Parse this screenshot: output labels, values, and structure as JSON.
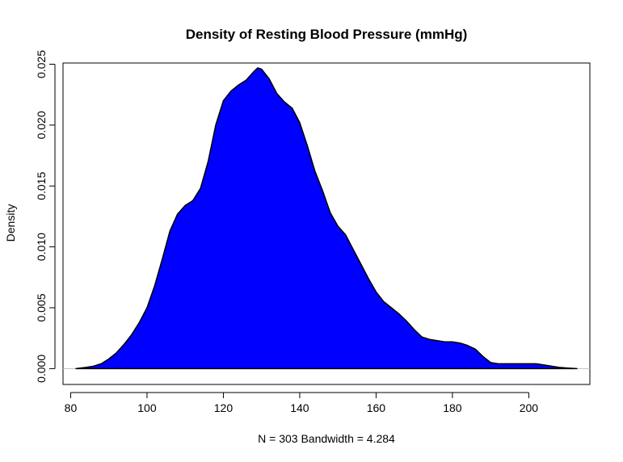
{
  "chart_data": {
    "type": "area",
    "title": "Density of Resting Blood Pressure (mmHg)",
    "xlabel": "N = 303   Bandwidth = 4.284",
    "ylabel": "Density",
    "xlim": [
      78,
      216
    ],
    "ylim": [
      -0.0013,
      0.0251
    ],
    "x_ticks": [
      80,
      100,
      120,
      140,
      160,
      180,
      200
    ],
    "x_tick_labels": [
      "80",
      "100",
      "120",
      "140",
      "160",
      "180",
      "200"
    ],
    "y_ticks": [
      0.0,
      0.005,
      0.01,
      0.015,
      0.02,
      0.025
    ],
    "y_tick_labels": [
      "0.000",
      "0.005",
      "0.010",
      "0.015",
      "0.020",
      "0.025"
    ],
    "fill_color": "#0000ff",
    "line_color": "#000000",
    "baseline_color": "#bebebe",
    "series": [
      {
        "x": [
          81.4,
          84,
          86,
          88,
          90,
          92,
          94,
          96,
          98,
          100,
          102,
          104,
          106,
          108,
          110,
          112,
          114,
          116,
          118,
          120,
          122,
          124,
          126,
          128,
          129,
          130,
          132,
          134,
          136,
          138,
          140,
          142,
          144,
          146,
          148,
          150,
          152,
          154,
          156,
          158,
          160,
          162,
          164,
          166,
          168,
          170,
          172,
          174,
          176,
          178,
          180,
          182,
          184,
          186,
          188,
          190,
          192,
          194,
          196,
          198,
          200,
          202,
          204,
          206,
          208,
          210,
          212.6
        ],
        "y": [
          0.0,
          0.0001,
          0.0002,
          0.0004,
          0.0008,
          0.0013,
          0.002,
          0.0028,
          0.0038,
          0.005,
          0.0068,
          0.009,
          0.0113,
          0.0127,
          0.0134,
          0.0138,
          0.0148,
          0.017,
          0.02,
          0.022,
          0.0228,
          0.0233,
          0.0237,
          0.0244,
          0.0247,
          0.0246,
          0.0238,
          0.0226,
          0.0219,
          0.0214,
          0.0202,
          0.0183,
          0.0162,
          0.0146,
          0.0128,
          0.0117,
          0.011,
          0.0098,
          0.0086,
          0.0074,
          0.0063,
          0.0055,
          0.005,
          0.0045,
          0.0039,
          0.0032,
          0.0026,
          0.0024,
          0.0023,
          0.0022,
          0.0022,
          0.0021,
          0.0019,
          0.0016,
          0.001,
          0.0005,
          0.0004,
          0.0004,
          0.0004,
          0.0004,
          0.0004,
          0.0004,
          0.0003,
          0.0002,
          0.0001,
          5e-05,
          0.0
        ]
      }
    ]
  }
}
